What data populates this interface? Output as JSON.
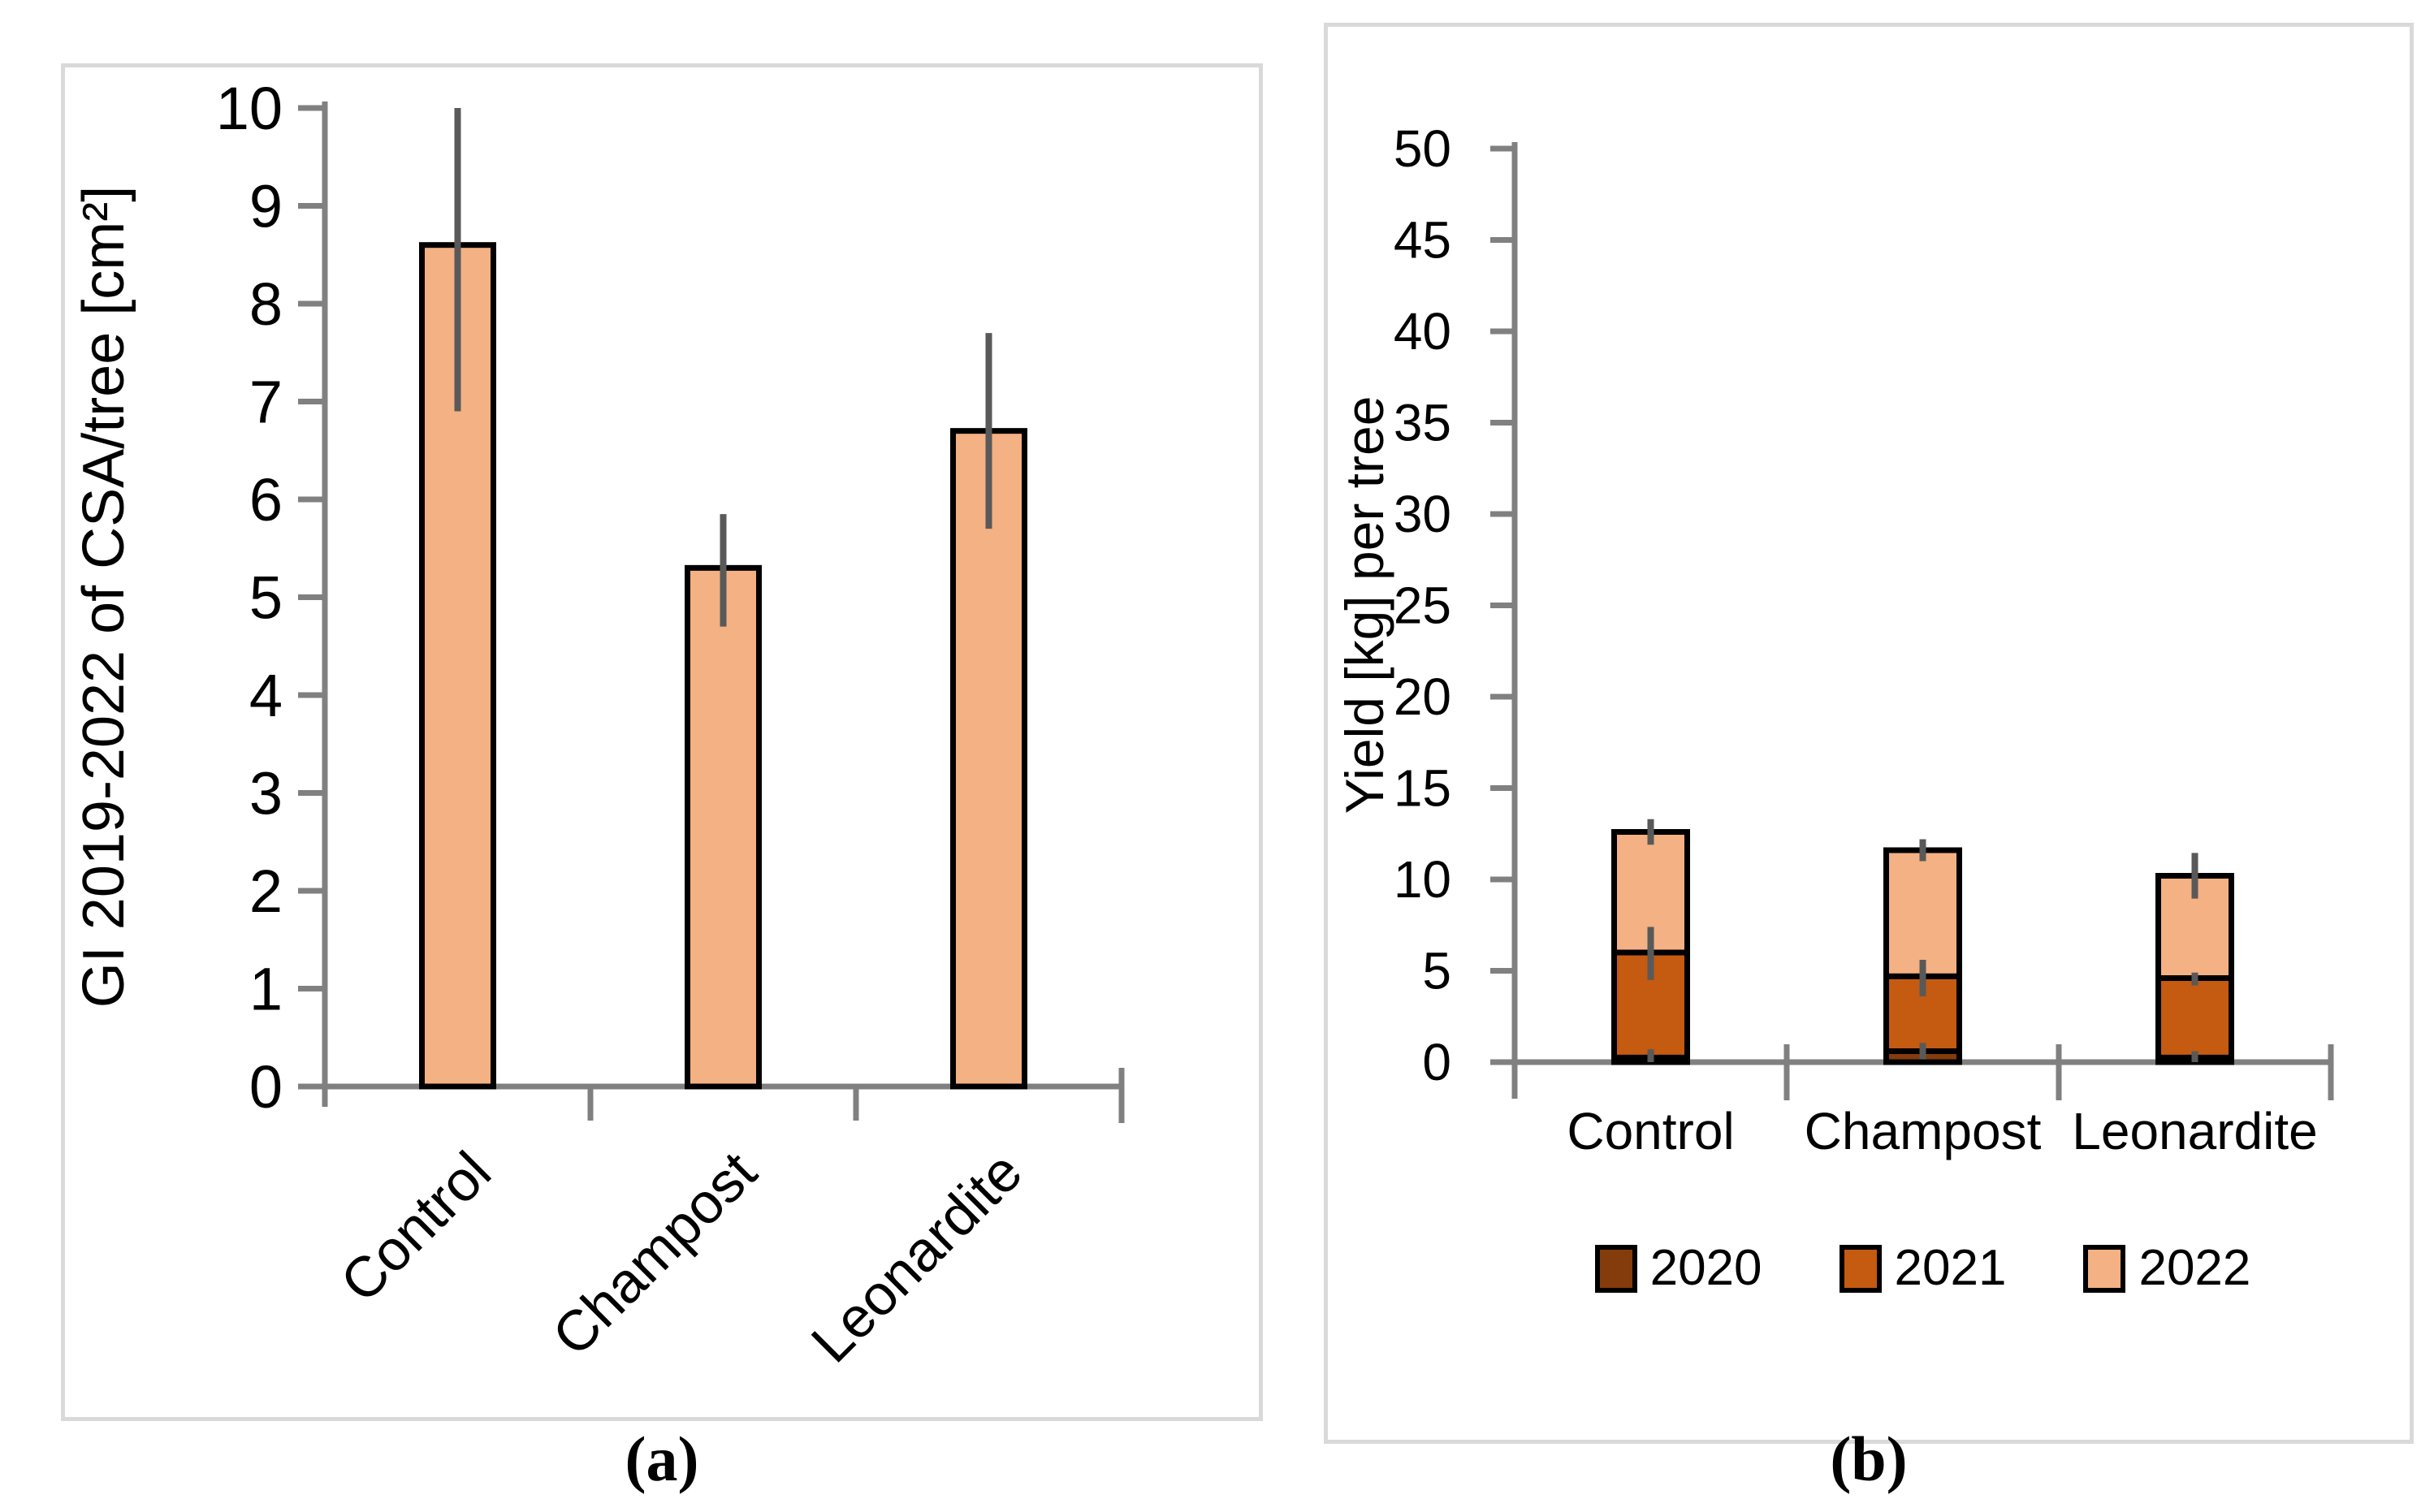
{
  "page": {
    "background": "#FFFFFF"
  },
  "panels": [
    {
      "id": "a",
      "caption": "(a)"
    },
    {
      "id": "b",
      "caption": "(b)"
    }
  ],
  "colors": {
    "bar_fill_2022_light": "#F4B183",
    "bar_fill_2021_orange": "#C55A11",
    "bar_fill_2020_brown": "#843C0C",
    "bar_outline": "#000000",
    "axis_line": "#808080",
    "error_bar": "#595959",
    "panel_border": "#D9D9D9",
    "text": "#000000"
  },
  "chart_data": [
    {
      "id": "a",
      "type": "bar",
      "title": "",
      "xlabel": "",
      "ylabel": "GI 2019-2022 of CSA/tree [cm²]",
      "categories": [
        "Control",
        "Champost",
        "Leonardite"
      ],
      "values": [
        8.6,
        5.3,
        6.7
      ],
      "error_low": [
        6.9,
        4.7,
        5.7
      ],
      "error_high": [
        10.0,
        5.85,
        7.7
      ],
      "ylim": [
        0,
        10
      ],
      "ytick_step": 1,
      "grid": false,
      "legend_position": "none",
      "bar_color": "#F4B183",
      "category_label_rotation": -45
    },
    {
      "id": "b",
      "type": "bar",
      "subtype": "stacked",
      "title": "",
      "xlabel": "",
      "ylabel": "Yield [kg] per tree",
      "categories": [
        "Control",
        "Champost",
        "Leonardite"
      ],
      "series": [
        {
          "name": "2020",
          "color": "#843C0C",
          "values": [
            0.25,
            0.6,
            0.25
          ]
        },
        {
          "name": "2021",
          "color": "#C55A11",
          "values": [
            5.75,
            4.1,
            4.35
          ]
        },
        {
          "name": "2022",
          "color": "#F4B183",
          "values": [
            6.6,
            6.9,
            5.6
          ]
        }
      ],
      "stack_totals": [
        12.6,
        11.6,
        10.2
      ],
      "error_bars": [
        {
          "at": "top-of-2022",
          "low": [
            11.9,
            11.0,
            8.95
          ],
          "high": [
            13.3,
            12.2,
            11.45
          ]
        },
        {
          "at": "top-of-2021",
          "low": [
            4.5,
            3.6,
            4.2
          ],
          "high": [
            7.4,
            5.6,
            4.9
          ]
        },
        {
          "at": "top-of-2020",
          "low": [
            0.0,
            0.15,
            0.0
          ],
          "high": [
            0.7,
            1.05,
            0.6
          ]
        }
      ],
      "ylim": [
        0,
        50
      ],
      "ytick_step": 5,
      "grid": false,
      "legend_position": "bottom",
      "legend_entries": [
        "2020",
        "2021",
        "2022"
      ]
    }
  ]
}
